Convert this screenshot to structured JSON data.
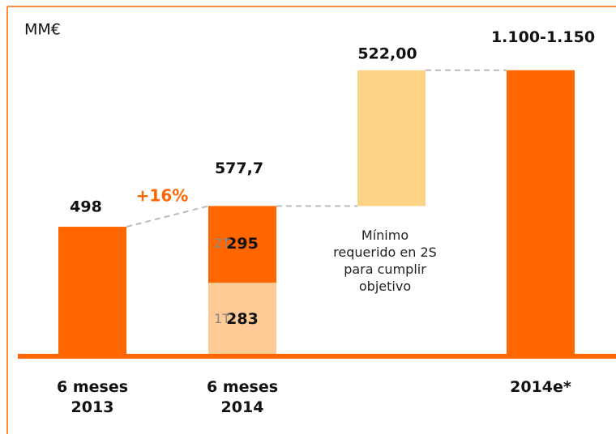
{
  "chart_data": {
    "type": "waterfall",
    "unit_label": "MM€",
    "categories": [
      "6 meses 2013",
      "6 meses 2014",
      null,
      "2014e*"
    ],
    "values": [
      498,
      577.7,
      522,
      1100
    ],
    "value_labels": [
      "498",
      "577,7",
      "522,00",
      "1.100-1.150"
    ],
    "bar_colors": [
      "#ff6600",
      null,
      "#ffd386",
      "#ff6600"
    ],
    "segments": [
      {
        "name": "1T",
        "value": 283,
        "color": "#ffca96"
      },
      {
        "name": "2T",
        "value": 295,
        "color": "#ff6600"
      }
    ],
    "growth_label": "+16%",
    "annotation": "Mínimo requerido en 2S para cumplir objetivo",
    "ylim": [
      0,
      1370
    ]
  }
}
